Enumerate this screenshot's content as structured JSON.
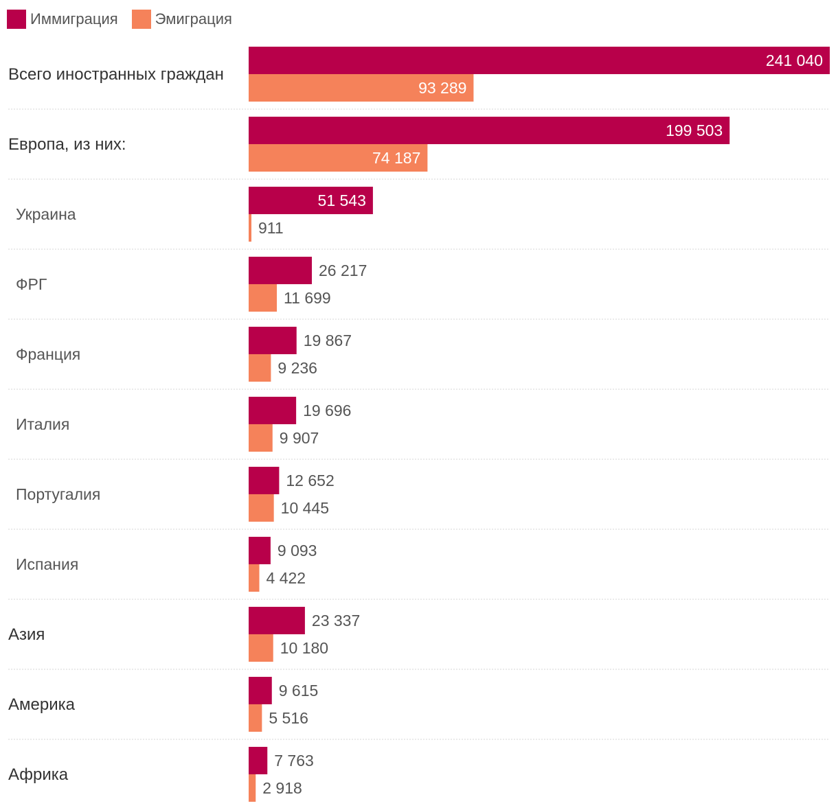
{
  "colors": {
    "immigration": "#b8004a",
    "emigration": "#f5825a",
    "inside_text": "#ffffff",
    "outside_text": "#555555",
    "category_strong": "#333333",
    "category_sub": "#555555",
    "divider": "#d6d6d6"
  },
  "legend": {
    "immigration_label": "Иммиграция",
    "emigration_label": "Эмиграция"
  },
  "chart_data": {
    "type": "bar",
    "orientation": "horizontal",
    "title": "",
    "xlabel": "",
    "ylabel": "",
    "xlim": [
      0,
      241040
    ],
    "grid": false,
    "legend_position": "top-left",
    "categories": [
      {
        "name": "Всего иностранных граждан",
        "level": 1
      },
      {
        "name": "Европа, из них:",
        "level": 1
      },
      {
        "name": "Украина",
        "level": 2
      },
      {
        "name": "ФРГ",
        "level": 2
      },
      {
        "name": "Франция",
        "level": 2
      },
      {
        "name": "Италия",
        "level": 2
      },
      {
        "name": "Португалия",
        "level": 2
      },
      {
        "name": "Испания",
        "level": 2
      },
      {
        "name": "Азия",
        "level": 1
      },
      {
        "name": "Америка",
        "level": 1
      },
      {
        "name": "Африка",
        "level": 1
      }
    ],
    "series": [
      {
        "name": "Иммиграция",
        "values": [
          241040,
          199503,
          51543,
          26217,
          19867,
          19696,
          12652,
          9093,
          23337,
          9615,
          7763
        ],
        "labels": [
          "241 040",
          "199 503",
          "51 543",
          "26 217",
          "19 867",
          "19 696",
          "12 652",
          "9 093",
          "23 337",
          "9 615",
          "7 763"
        ]
      },
      {
        "name": "Эмиграция",
        "values": [
          93289,
          74187,
          911,
          11699,
          9236,
          9907,
          10445,
          4422,
          10180,
          5516,
          2918
        ],
        "labels": [
          "93 289",
          "74 187",
          "911",
          "11 699",
          "9 236",
          "9 907",
          "10 445",
          "4 422",
          "10 180",
          "5 516",
          "2 918"
        ]
      }
    ]
  }
}
